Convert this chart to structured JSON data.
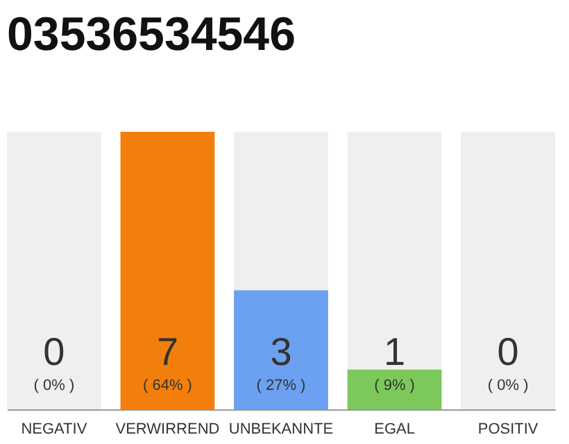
{
  "chart_data": {
    "type": "bar",
    "title": "03536534546",
    "categories": [
      "NEGATIV",
      "VERWIRREND",
      "UNBEKANNTE",
      "EGAL",
      "POSITIV"
    ],
    "values": [
      0,
      7,
      3,
      1,
      0
    ],
    "colors": [
      "#9e9e9e",
      "#f27f0c",
      "#6ca0f0",
      "#7cc85a",
      "#9e9e9e"
    ],
    "data_labels": true,
    "ylim": [
      0,
      7
    ],
    "tick_labels": "x",
    "bands": [
      {
        "axis": "x",
        "from": "NEGATIV",
        "to": "NEGATIV",
        "color": "#efefef"
      },
      {
        "axis": "x",
        "from": "UNBEKANNTE",
        "to": "UNBEKANNTE",
        "color": "#efefef"
      },
      {
        "axis": "x",
        "from": "EGAL",
        "to": "EGAL",
        "color": "#efefef"
      },
      {
        "axis": "x",
        "from": "POSITIV",
        "to": "POSITIV",
        "color": "#efefef"
      }
    ],
    "annotations": [
      "( 0% )",
      "( 64% )",
      "( 27% )",
      "( 9% )",
      "( 0% )"
    ]
  }
}
